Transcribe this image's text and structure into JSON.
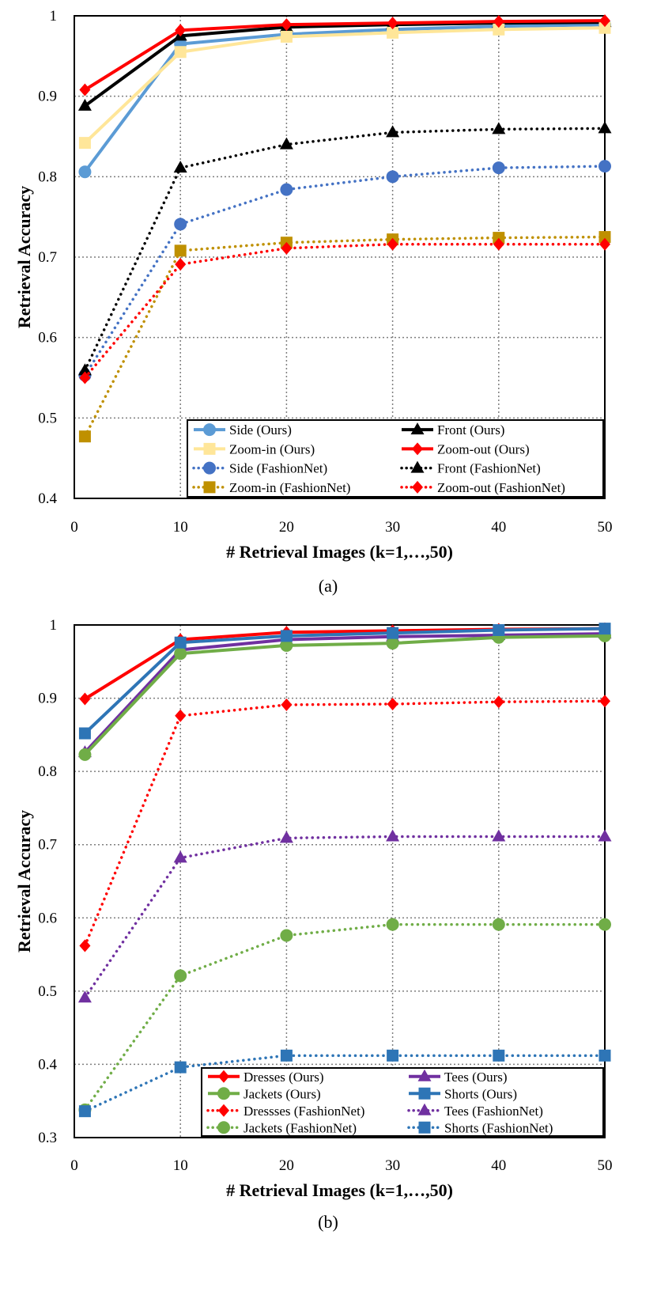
{
  "chart_data": [
    {
      "type": "line",
      "caption": "(a)",
      "xlabel": "# Retrieval Images (k=1,…,50)",
      "ylabel": "Retrieval Accuracy",
      "xlim": [
        0,
        50
      ],
      "ylim": [
        0.4,
        1.0
      ],
      "xticks": [
        "0",
        "10",
        "20",
        "30",
        "40",
        "50"
      ],
      "yticks": [
        "0.4",
        "0.5",
        "0.6",
        "0.7",
        "0.8",
        "0.9",
        "1"
      ],
      "xtick_values": [
        0,
        10,
        20,
        30,
        40,
        50
      ],
      "ytick_values": [
        0.4,
        0.5,
        0.6,
        0.7,
        0.8,
        0.9,
        1.0
      ],
      "x": [
        1,
        10,
        20,
        30,
        40,
        50
      ],
      "grid": true,
      "legend_position": "bottom-right",
      "series": [
        {
          "name": "Side (Ours)",
          "values": [
            0.806,
            0.965,
            0.977,
            0.983,
            0.987,
            0.989
          ],
          "color": "#5b9bd5",
          "style": "solid",
          "marker": "circle"
        },
        {
          "name": "Front (Ours)",
          "values": [
            0.888,
            0.975,
            0.986,
            0.989,
            0.991,
            0.992
          ],
          "color": "#000000",
          "style": "solid",
          "marker": "triangle"
        },
        {
          "name": "Zoom-in (Ours)",
          "values": [
            0.842,
            0.955,
            0.974,
            0.979,
            0.983,
            0.985
          ],
          "color": "#ffe699",
          "style": "solid",
          "marker": "square"
        },
        {
          "name": "Zoom-out (Ours)",
          "values": [
            0.908,
            0.982,
            0.989,
            0.991,
            0.993,
            0.994
          ],
          "color": "#ff0000",
          "style": "solid",
          "marker": "diamond"
        },
        {
          "name": "Side (FashionNet)",
          "values": [
            0.553,
            0.741,
            0.784,
            0.8,
            0.811,
            0.813
          ],
          "color": "#4472c4",
          "style": "dotted",
          "marker": "circle"
        },
        {
          "name": "Front (FashionNet)",
          "values": [
            0.559,
            0.811,
            0.84,
            0.855,
            0.859,
            0.86
          ],
          "color": "#000000",
          "style": "dotted",
          "marker": "triangle"
        },
        {
          "name": "Zoom-in (FashionNet)",
          "values": [
            0.477,
            0.708,
            0.718,
            0.722,
            0.724,
            0.725
          ],
          "color": "#bf9000",
          "style": "dotted",
          "marker": "square"
        },
        {
          "name": "Zoom-out (FashionNet)",
          "values": [
            0.55,
            0.691,
            0.711,
            0.716,
            0.716,
            0.716
          ],
          "color": "#ff0000",
          "style": "dotted",
          "marker": "diamond"
        }
      ]
    },
    {
      "type": "line",
      "caption": "(b)",
      "xlabel": "# Retrieval Images (k=1,…,50)",
      "ylabel": "Retrieval Accuracy",
      "xlim": [
        0,
        50
      ],
      "ylim": [
        0.3,
        1.0
      ],
      "xticks": [
        "0",
        "10",
        "20",
        "30",
        "40",
        "50"
      ],
      "yticks": [
        "0.3",
        "0.4",
        "0.5",
        "0.6",
        "0.7",
        "0.8",
        "0.9",
        "1"
      ],
      "xtick_values": [
        0,
        10,
        20,
        30,
        40,
        50
      ],
      "ytick_values": [
        0.3,
        0.4,
        0.5,
        0.6,
        0.7,
        0.8,
        0.9,
        1.0
      ],
      "x": [
        1,
        10,
        20,
        30,
        40,
        50
      ],
      "grid": true,
      "legend_position": "bottom-right",
      "series": [
        {
          "name": "Dresses (Ours)",
          "values": [
            0.899,
            0.98,
            0.99,
            0.992,
            0.994,
            0.995
          ],
          "color": "#ff0000",
          "style": "solid",
          "marker": "diamond"
        },
        {
          "name": "Tees (Ours)",
          "values": [
            0.826,
            0.966,
            0.98,
            0.984,
            0.986,
            0.988
          ],
          "color": "#7030a0",
          "style": "solid",
          "marker": "triangle"
        },
        {
          "name": "Jackets (Ours)",
          "values": [
            0.823,
            0.961,
            0.972,
            0.975,
            0.983,
            0.985
          ],
          "color": "#70ad47",
          "style": "solid",
          "marker": "circle"
        },
        {
          "name": "Shorts (Ours)",
          "values": [
            0.852,
            0.976,
            0.985,
            0.989,
            0.993,
            0.995
          ],
          "color": "#2e75b6",
          "style": "solid",
          "marker": "square"
        },
        {
          "name": "Dressses (FashionNet)",
          "values": [
            0.562,
            0.876,
            0.891,
            0.892,
            0.895,
            0.896
          ],
          "color": "#ff0000",
          "style": "dotted",
          "marker": "diamond"
        },
        {
          "name": "Tees (FashionNet)",
          "values": [
            0.491,
            0.682,
            0.709,
            0.711,
            0.711,
            0.711
          ],
          "color": "#7030a0",
          "style": "dotted",
          "marker": "triangle"
        },
        {
          "name": "Jackets (FashionNet)",
          "values": [
            0.338,
            0.521,
            0.576,
            0.591,
            0.591,
            0.591
          ],
          "color": "#70ad47",
          "style": "dotted",
          "marker": "circle"
        },
        {
          "name": "Shorts (FashionNet)",
          "values": [
            0.336,
            0.396,
            0.412,
            0.412,
            0.412,
            0.412
          ],
          "color": "#2e75b6",
          "style": "dotted",
          "marker": "square"
        }
      ]
    }
  ]
}
